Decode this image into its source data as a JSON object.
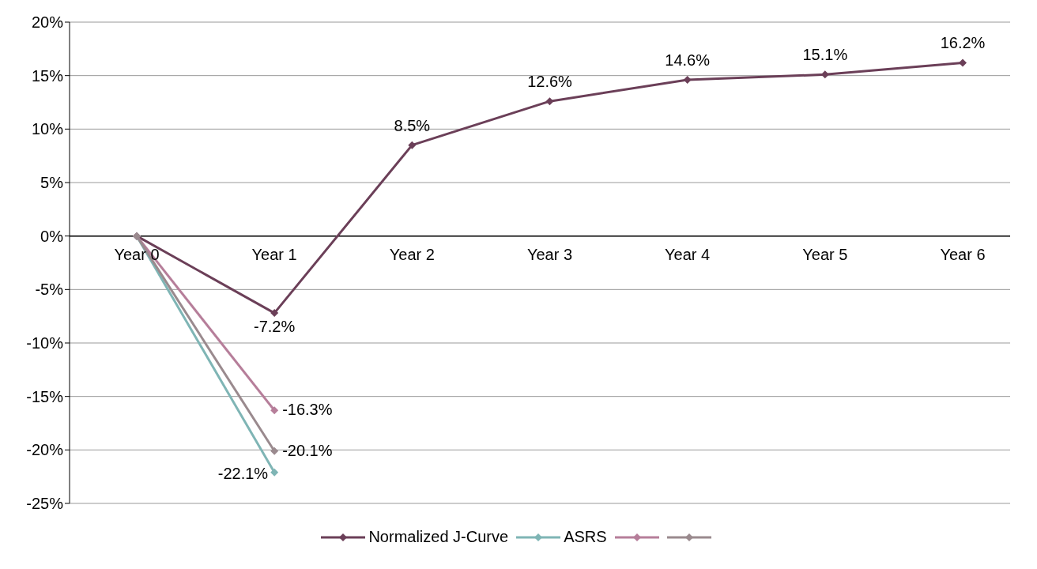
{
  "chart_data": {
    "type": "line",
    "categories": [
      "Year 0",
      "Year 1",
      "Year 2",
      "Year 3",
      "Year 4",
      "Year 5",
      "Year 6"
    ],
    "series": [
      {
        "name": "Normalized J-Curve",
        "color": "#6b3f58",
        "values": [
          0,
          -7.2,
          8.5,
          12.6,
          14.6,
          15.1,
          16.2
        ],
        "value_labels": [
          null,
          "-7.2%",
          "8.5%",
          "12.6%",
          "14.6%",
          "15.1%",
          "16.2%"
        ]
      },
      {
        "name": "ASRS",
        "color": "#7fb5b5",
        "values": [
          0,
          -22.1,
          null,
          null,
          null,
          null,
          null
        ],
        "value_labels": [
          null,
          "-22.1%",
          null,
          null,
          null,
          null,
          null
        ]
      },
      {
        "color": "#b67e9a",
        "values": [
          0,
          -16.3,
          null,
          null,
          null,
          null,
          null
        ],
        "value_labels": [
          null,
          "-16.3%",
          null,
          null,
          null,
          null,
          null
        ]
      },
      {
        "color": "#9a8a8e",
        "values": [
          0,
          -20.1,
          null,
          null,
          null,
          null,
          null
        ],
        "value_labels": [
          null,
          "-20.1%",
          null,
          null,
          null,
          null,
          null
        ]
      }
    ],
    "ylim": [
      -25,
      20
    ],
    "yticks": [
      {
        "value": -25,
        "label": "-25%"
      },
      {
        "value": -20,
        "label": "-20%"
      },
      {
        "value": -15,
        "label": "-15%"
      },
      {
        "value": -10,
        "label": "-10%"
      },
      {
        "value": -5,
        "label": "-5%"
      },
      {
        "value": 0,
        "label": "0%"
      },
      {
        "value": 5,
        "label": "5%"
      },
      {
        "value": 10,
        "label": "10%"
      },
      {
        "value": 15,
        "label": "15%"
      },
      {
        "value": 20,
        "label": "20%"
      }
    ],
    "grid": "y",
    "legend": "bottom",
    "marker": "diamond",
    "line_style": "solid"
  }
}
